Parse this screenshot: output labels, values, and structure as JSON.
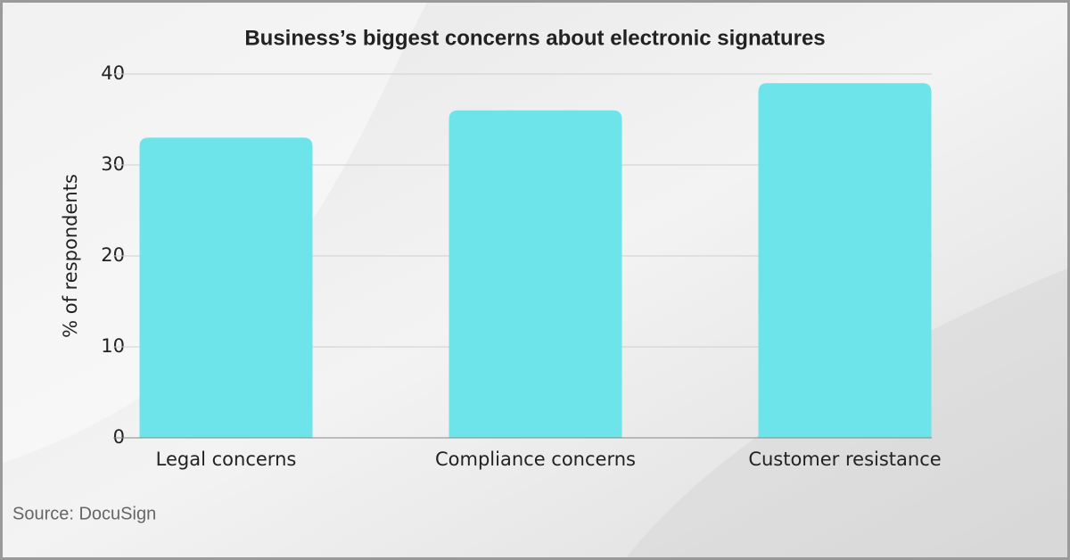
{
  "chart_data": {
    "type": "bar",
    "title": "Business’s biggest concerns about electronic signatures",
    "y_label": "% of respondents",
    "source": "Source: DocuSign",
    "categories": [
      "Legal concerns",
      "Compliance concerns",
      "Customer resistance"
    ],
    "values": [
      33,
      36,
      39
    ],
    "color": "#6ce4e9",
    "ylim": [
      0,
      40
    ],
    "yticks": [
      0,
      10,
      20,
      30,
      40
    ],
    "grid": true
  }
}
